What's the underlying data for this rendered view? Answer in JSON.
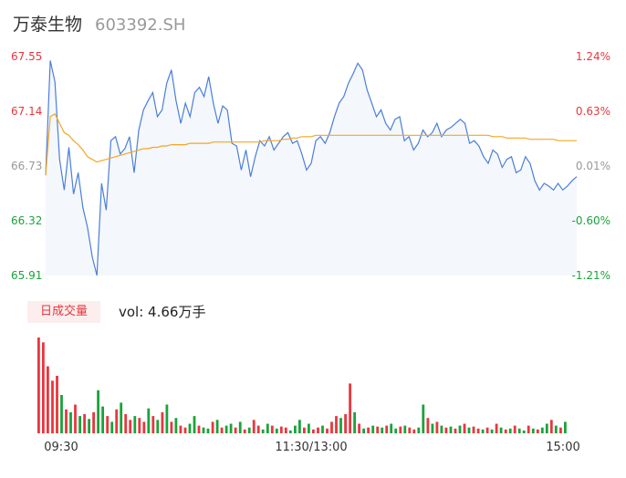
{
  "header": {
    "name": "万泰生物",
    "code": "603392.SH"
  },
  "volume_panel": {
    "tag": "日成交量",
    "summary": "vol: 4.66万手"
  },
  "colors": {
    "up": "#e8373e",
    "down": "#1aa33a",
    "flat": "#999999",
    "price_line": "#4a7fd8",
    "avg_line": "#f5a623",
    "area_fill": "#f4f7fc"
  },
  "chart_data": [
    {
      "type": "line",
      "title": "",
      "y_ticks_left": [
        "67.55",
        "67.14",
        "66.73",
        "66.32",
        "65.91"
      ],
      "y_ticks_right": [
        "1.24%",
        "0.63%",
        "0.01%",
        "-0.60%",
        "-1.21%"
      ],
      "ylim": [
        65.91,
        67.55
      ],
      "x_ticks": [
        "09:30",
        "11:30/13:00",
        "15:00"
      ],
      "series": [
        {
          "values": [
            66.66,
            67.52,
            67.36,
            66.78,
            66.55,
            66.87,
            66.52,
            66.68,
            66.42,
            66.27,
            66.05,
            65.91,
            66.6,
            66.4,
            66.92,
            66.95,
            66.82,
            66.86,
            66.95,
            66.68,
            67.0,
            67.15,
            67.22,
            67.28,
            67.1,
            67.15,
            67.35,
            67.45,
            67.22,
            67.05,
            67.2,
            67.1,
            67.28,
            67.32,
            67.25,
            67.4,
            67.2,
            67.05,
            67.18,
            67.15,
            66.9,
            66.88,
            66.7,
            66.85,
            66.65,
            66.8,
            66.92,
            66.88,
            66.95,
            66.85,
            66.9,
            66.95,
            66.98,
            66.9,
            66.92,
            66.82,
            66.7,
            66.75,
            66.92,
            66.95,
            66.9,
            66.98,
            67.1,
            67.2,
            67.25,
            67.35,
            67.42,
            67.5,
            67.45,
            67.3,
            67.2,
            67.1,
            67.15,
            67.05,
            67.0,
            67.08,
            67.1,
            66.92,
            66.95,
            66.85,
            66.9,
            67.0,
            66.95,
            66.98,
            67.05,
            66.95,
            67.0,
            67.02,
            67.05,
            67.08,
            67.05,
            66.9,
            66.92,
            66.88,
            66.8,
            66.75,
            66.85,
            66.82,
            66.72,
            66.78,
            66.8,
            66.68,
            66.7,
            66.8,
            66.75,
            66.62,
            66.55,
            66.6,
            66.58,
            66.55,
            66.6,
            66.55,
            66.58,
            66.62,
            66.65
          ],
          "name": ""
        },
        {
          "values": [
            66.66,
            67.1,
            67.12,
            67.05,
            66.98,
            66.96,
            66.92,
            66.89,
            66.85,
            66.8,
            66.78,
            66.76,
            66.77,
            66.78,
            66.79,
            66.8,
            66.81,
            66.82,
            66.83,
            66.84,
            66.85,
            66.86,
            66.86,
            66.87,
            66.87,
            66.88,
            66.88,
            66.89,
            66.89,
            66.89,
            66.89,
            66.9,
            66.9,
            66.9,
            66.9,
            66.9,
            66.91,
            66.91,
            66.91,
            66.91,
            66.91,
            66.91,
            66.91,
            66.91,
            66.91,
            66.91,
            66.91,
            66.92,
            66.92,
            66.92,
            66.92,
            66.93,
            66.93,
            66.94,
            66.94,
            66.95,
            66.95,
            66.95,
            66.96,
            66.96,
            66.96,
            66.96,
            66.96,
            66.96,
            66.96,
            66.96,
            66.96,
            66.96,
            66.96,
            66.96,
            66.96,
            66.96,
            66.96,
            66.96,
            66.96,
            66.96,
            66.96,
            66.96,
            66.96,
            66.96,
            66.96,
            66.96,
            66.96,
            66.96,
            66.96,
            66.96,
            66.96,
            66.96,
            66.96,
            66.96,
            66.96,
            66.96,
            66.96,
            66.96,
            66.96,
            66.96,
            66.95,
            66.95,
            66.95,
            66.94,
            66.94,
            66.94,
            66.94,
            66.94,
            66.93,
            66.93,
            66.93,
            66.93,
            66.93,
            66.93,
            66.92,
            66.92,
            66.92,
            66.92,
            66.92
          ],
          "name": ""
        }
      ]
    },
    {
      "type": "bar",
      "title": "",
      "values": [
        100,
        95,
        70,
        55,
        60,
        40,
        25,
        22,
        30,
        18,
        20,
        15,
        22,
        45,
        28,
        18,
        12,
        25,
        32,
        20,
        14,
        18,
        16,
        12,
        26,
        18,
        14,
        22,
        30,
        12,
        16,
        8,
        6,
        10,
        18,
        8,
        6,
        5,
        12,
        14,
        6,
        8,
        10,
        6,
        12,
        4,
        6,
        14,
        8,
        4,
        10,
        8,
        5,
        7,
        6,
        3,
        8,
        14,
        6,
        10,
        4,
        6,
        8,
        5,
        12,
        18,
        16,
        20,
        52,
        22,
        10,
        5,
        6,
        8,
        7,
        6,
        8,
        10,
        5,
        7,
        8,
        6,
        4,
        6,
        30,
        16,
        10,
        12,
        8,
        6,
        7,
        5,
        8,
        10,
        6,
        7,
        5,
        4,
        6,
        4,
        10,
        6,
        4,
        5,
        8,
        5,
        3,
        8,
        5,
        4,
        6,
        10,
        14,
        8,
        6,
        12
      ],
      "colors": [
        "up",
        "up",
        "up",
        "up",
        "up",
        "down",
        "up",
        "down",
        "up",
        "down",
        "up",
        "down",
        "up",
        "down",
        "down",
        "up",
        "down",
        "up",
        "down",
        "up",
        "up",
        "down",
        "up",
        "up",
        "down",
        "up",
        "down",
        "up",
        "down",
        "up",
        "down",
        "up",
        "up",
        "down",
        "down",
        "up",
        "down",
        "down",
        "up",
        "down",
        "up",
        "down",
        "down",
        "up",
        "down",
        "up",
        "down",
        "up",
        "up",
        "down",
        "down",
        "up",
        "down",
        "up",
        "up",
        "down",
        "down",
        "down",
        "up",
        "down",
        "up",
        "up",
        "down",
        "up",
        "up",
        "up",
        "down",
        "up",
        "up",
        "down",
        "up",
        "down",
        "up",
        "down",
        "up",
        "down",
        "up",
        "down",
        "down",
        "up",
        "down",
        "up",
        "up",
        "down",
        "down",
        "up",
        "down",
        "up",
        "down",
        "up",
        "down",
        "up",
        "down",
        "up",
        "down",
        "up",
        "up",
        "down",
        "up",
        "down",
        "up",
        "down",
        "up",
        "down",
        "up",
        "down",
        "down",
        "up",
        "down",
        "up",
        "down",
        "down",
        "up",
        "down",
        "up",
        "down"
      ],
      "ylim": [
        0,
        100
      ]
    }
  ]
}
